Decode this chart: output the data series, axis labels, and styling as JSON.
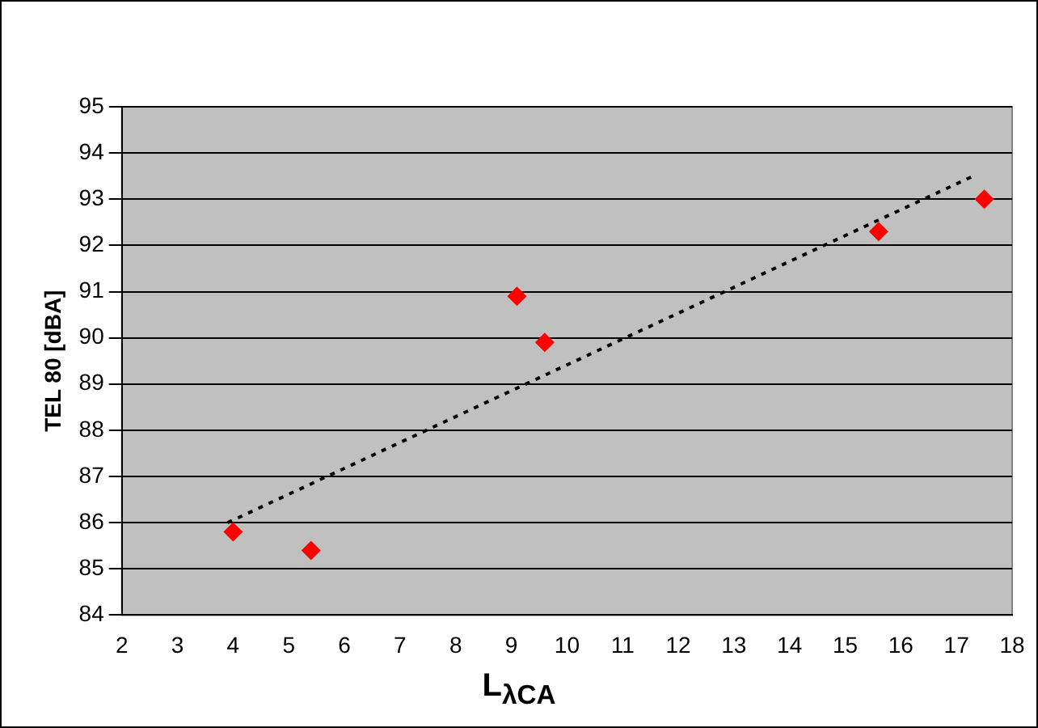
{
  "chart_data": {
    "type": "scatter",
    "xlabel": "L$_{λCA}$",
    "ylabel": "TEL 80 [dBA]",
    "xlim": [
      2,
      18
    ],
    "xticks": [
      2,
      3,
      4,
      5,
      6,
      7,
      8,
      9,
      10,
      11,
      12,
      13,
      14,
      15,
      16,
      17,
      18
    ],
    "ylim": [
      84,
      95
    ],
    "yticks": [
      84,
      85,
      86,
      87,
      88,
      89,
      90,
      91,
      92,
      93,
      94,
      95
    ],
    "grid": "y",
    "legend": false,
    "marker": "diamond",
    "series": [
      {
        "color": "#ff0000",
        "x": [
          4.0,
          5.4,
          9.1,
          9.6,
          15.6,
          17.5
        ],
        "values": [
          85.8,
          85.4,
          90.9,
          89.9,
          92.3,
          93.0
        ]
      },
      {
        "type": "line",
        "color": "#000000",
        "line_style": "dotted",
        "marker": "none",
        "x": [
          3.9,
          17.3
        ],
        "values": [
          86.0,
          93.5
        ]
      }
    ]
  }
}
